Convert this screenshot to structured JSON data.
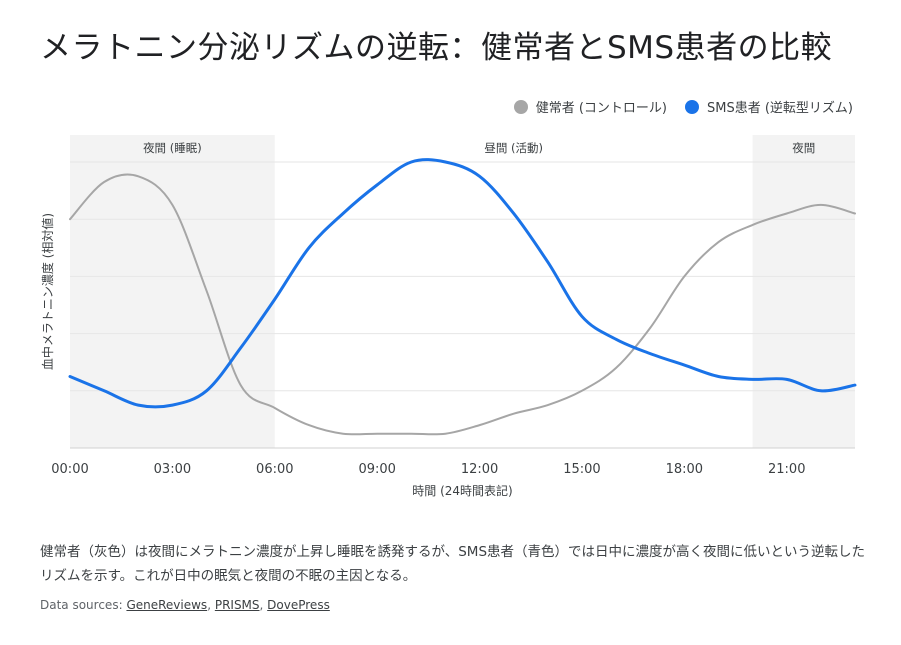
{
  "title": "メラトニン分泌リズムの逆転：健常者とSMS患者の比較",
  "legend": {
    "control": "健常者 (コントロール)",
    "sms": "SMS患者 (逆転型リズム)"
  },
  "colors": {
    "control": "#a6a6a6",
    "sms": "#1a73e8",
    "night_band": "#f3f3f3"
  },
  "caption": "健常者（灰色）は夜間にメラトニン濃度が上昇し睡眠を誘発するが、SMS患者（青色）では日中に濃度が高く夜間に低いという逆転したリズムを示す。これが日中の眠気と夜間の不眠の主因となる。",
  "sources": {
    "prefix": "Data sources: ",
    "links": [
      "GeneReviews",
      "PRISMS",
      "DovePress"
    ]
  },
  "chart_data": {
    "type": "line",
    "title": "",
    "xlabel": "時間 (24時間表記)",
    "ylabel": "血中メラトニン濃度 (相対値)",
    "xlim": [
      0,
      23
    ],
    "ylim": [
      0,
      100
    ],
    "x_ticks": [
      {
        "value": 0,
        "label": "00:00"
      },
      {
        "value": 3,
        "label": "03:00"
      },
      {
        "value": 6,
        "label": "06:00"
      },
      {
        "value": 9,
        "label": "09:00"
      },
      {
        "value": 12,
        "label": "12:00"
      },
      {
        "value": 15,
        "label": "15:00"
      },
      {
        "value": 18,
        "label": "18:00"
      },
      {
        "value": 21,
        "label": "21:00"
      }
    ],
    "grid": true,
    "legend_position": "top-right",
    "regions": [
      {
        "from": 0,
        "to": 6,
        "label": "夜間 (睡眠)",
        "shaded": true
      },
      {
        "from": 6,
        "to": 20,
        "label": "昼間 (活動)",
        "shaded": false
      },
      {
        "from": 20,
        "to": 23,
        "label": "夜間",
        "shaded": true
      }
    ],
    "series": [
      {
        "name": "健常者 (コントロール)",
        "x": [
          0,
          1,
          2,
          3,
          4,
          5,
          6,
          7,
          8,
          9,
          10,
          11,
          12,
          13,
          14,
          15,
          16,
          17,
          18,
          19,
          20,
          21,
          22,
          23
        ],
        "values": [
          80,
          93,
          95,
          85,
          55,
          22,
          14,
          8,
          5,
          5,
          5,
          5,
          8,
          12,
          15,
          20,
          28,
          42,
          60,
          72,
          78,
          82,
          85,
          82
        ]
      },
      {
        "name": "SMS患者 (逆転型リズム)",
        "x": [
          0,
          1,
          2,
          3,
          4,
          5,
          6,
          7,
          8,
          9,
          10,
          11,
          12,
          13,
          14,
          15,
          16,
          17,
          18,
          19,
          20,
          21,
          22,
          23
        ],
        "values": [
          25,
          20,
          15,
          15,
          20,
          35,
          52,
          70,
          82,
          92,
          100,
          100,
          95,
          82,
          65,
          46,
          38,
          33,
          29,
          25,
          24,
          24,
          20,
          22
        ]
      }
    ]
  }
}
